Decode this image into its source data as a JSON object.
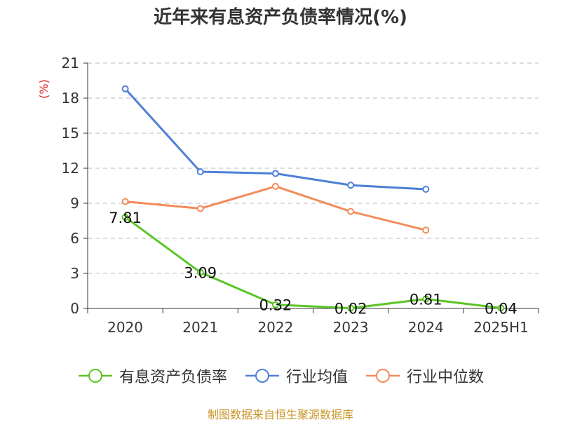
{
  "chart_data": {
    "type": "line",
    "title": "近年来有息资产负债率情况(%)",
    "ylabel": "(%)",
    "categories": [
      "2020",
      "2021",
      "2022",
      "2023",
      "2024",
      "2025H1"
    ],
    "ylim": [
      0,
      21
    ],
    "yticks": [
      0,
      3,
      6,
      9,
      12,
      15,
      18,
      21
    ],
    "grid": true,
    "legend_position": "bottom",
    "series": [
      {
        "name": "有息资产负债率",
        "color": "#5CC526",
        "values": [
          7.81,
          3.09,
          0.32,
          0.02,
          0.81,
          0.04
        ],
        "labels": [
          "7.81",
          "3.09",
          "0.32",
          "0.02",
          "0.81",
          "0.04"
        ]
      },
      {
        "name": "行业均值",
        "color": "#4E7FD6",
        "values": [
          18.8,
          11.7,
          11.55,
          10.55,
          10.2,
          null
        ]
      },
      {
        "name": "行业中位数",
        "color": "#F28C5B",
        "values": [
          9.15,
          8.55,
          10.45,
          8.3,
          6.7,
          null
        ]
      }
    ],
    "source": "制图数据来自恒生聚源数据库"
  }
}
